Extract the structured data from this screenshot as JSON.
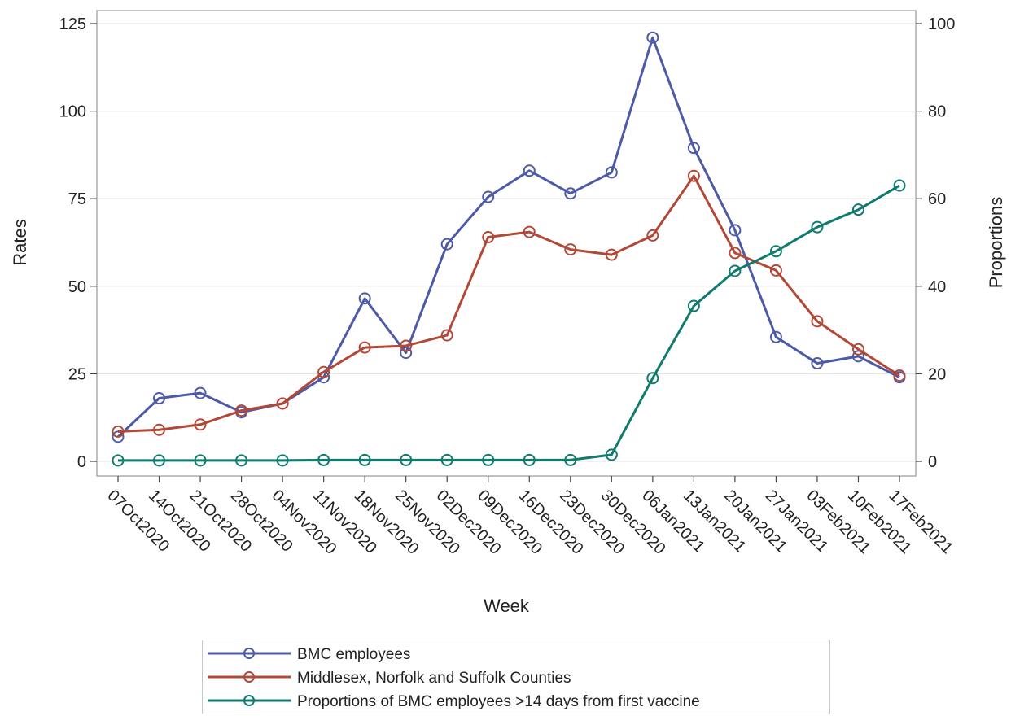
{
  "chart_data": {
    "type": "line",
    "xlabel": "Week",
    "ylabel": "Rates",
    "y2label": "Proportions",
    "categories": [
      "07Oct2020",
      "14Oct2020",
      "21Oct2020",
      "28Oct2020",
      "04Nov2020",
      "11Nov2020",
      "18Nov2020",
      "25Nov2020",
      "02Dec2020",
      "09Dec2020",
      "16Dec2020",
      "23Dec2020",
      "30Dec2020",
      "06Jan2021",
      "13Jan2021",
      "20Jan2021",
      "27Jan2021",
      "03Feb2021",
      "10Feb2021",
      "17Feb2021"
    ],
    "ylim": [
      0,
      125
    ],
    "yticks": [
      0,
      25,
      50,
      75,
      100,
      125
    ],
    "y2lim": [
      0,
      100
    ],
    "y2ticks": [
      0,
      20,
      40,
      60,
      80,
      100
    ],
    "grid": "horizontal",
    "legend_position": "bottom",
    "series": [
      {
        "name": "BMC employees",
        "axis": "left",
        "color": "#4d5aa7",
        "values": [
          7,
          18,
          19.5,
          14,
          16.5,
          24,
          46.5,
          31,
          62,
          75.5,
          83,
          76.5,
          82.5,
          121,
          89.5,
          66,
          35.5,
          28,
          30,
          24
        ]
      },
      {
        "name": "Middlesex, Norfolk and Suffolk Counties",
        "axis": "left",
        "color": "#b24837",
        "values": [
          8.5,
          9,
          10.5,
          14.5,
          16.5,
          25.5,
          32.5,
          33,
          36,
          64,
          65.5,
          60.5,
          59,
          64.5,
          81.5,
          59.5,
          54.5,
          40,
          32,
          24.5
        ]
      },
      {
        "name": "Proportions of BMC employees >14 days from first vaccine",
        "axis": "right",
        "color": "#117a6e",
        "values": [
          0.2,
          0.2,
          0.2,
          0.2,
          0.2,
          0.3,
          0.3,
          0.3,
          0.3,
          0.3,
          0.3,
          0.3,
          1.5,
          19,
          35.5,
          43.5,
          48,
          53.5,
          57.5,
          63
        ]
      }
    ]
  }
}
